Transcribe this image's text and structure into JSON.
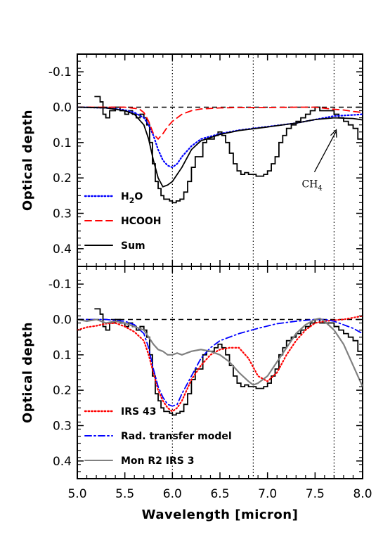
{
  "chart_data": [
    {
      "type": "line",
      "panel": "top",
      "xlabel": "",
      "ylabel": "Optical depth",
      "xlim": [
        5.0,
        8.0
      ],
      "ylim": [
        0.45,
        -0.15
      ],
      "y_inverted": true,
      "yticks": [
        "-0.1",
        "0.0",
        "0.1",
        "0.2",
        "0.3",
        "0.4"
      ],
      "ytick_values": [
        -0.1,
        0.0,
        0.1,
        0.2,
        0.3,
        0.4
      ],
      "reference_lines": {
        "horizontal_dashed_y": 0.0,
        "vertical_dotted_x": [
          6.0,
          6.85,
          7.7
        ]
      },
      "observed_histogram": {
        "x": [
          5.18,
          5.24,
          5.27,
          5.3,
          5.34,
          5.4,
          5.45,
          5.5,
          5.54,
          5.58,
          5.62,
          5.66,
          5.7,
          5.73,
          5.76,
          5.79,
          5.82,
          5.85,
          5.88,
          5.91,
          5.94,
          5.97,
          6.0,
          6.04,
          6.08,
          6.12,
          6.16,
          6.2,
          6.24,
          6.28,
          6.32,
          6.36,
          6.4,
          6.44,
          6.48,
          6.52,
          6.56,
          6.6,
          6.64,
          6.68,
          6.72,
          6.76,
          6.8,
          6.84,
          6.88,
          6.92,
          6.96,
          7.0,
          7.04,
          7.08,
          7.12,
          7.16,
          7.2,
          7.25,
          7.3,
          7.35,
          7.4,
          7.45,
          7.5,
          7.55,
          7.6,
          7.65,
          7.7,
          7.75,
          7.8,
          7.85,
          7.9,
          7.95,
          8.0
        ],
        "y": [
          -0.03,
          -0.015,
          0.02,
          0.03,
          0.01,
          0.0,
          0.01,
          0.02,
          0.01,
          0.02,
          0.03,
          0.02,
          0.03,
          0.05,
          0.1,
          0.16,
          0.21,
          0.23,
          0.25,
          0.26,
          0.26,
          0.265,
          0.27,
          0.265,
          0.26,
          0.24,
          0.21,
          0.17,
          0.14,
          0.14,
          0.1,
          0.09,
          0.09,
          0.08,
          0.07,
          0.08,
          0.1,
          0.13,
          0.16,
          0.18,
          0.19,
          0.185,
          0.19,
          0.19,
          0.195,
          0.195,
          0.19,
          0.18,
          0.16,
          0.14,
          0.1,
          0.08,
          0.06,
          0.05,
          0.04,
          0.03,
          0.02,
          0.01,
          0.0,
          0.01,
          0.01,
          0.01,
          0.02,
          0.03,
          0.04,
          0.05,
          0.06,
          0.09,
          0.11
        ]
      },
      "series": [
        {
          "name": "H2O",
          "style": "dotted",
          "color": "#0000ff",
          "x": [
            5.0,
            5.3,
            5.5,
            5.6,
            5.7,
            5.75,
            5.8,
            5.85,
            5.9,
            5.95,
            6.0,
            6.05,
            6.1,
            6.2,
            6.3,
            6.5,
            6.7,
            7.0,
            7.3,
            7.5,
            7.7,
            7.9,
            8.0
          ],
          "y": [
            0.0,
            0.002,
            0.008,
            0.015,
            0.03,
            0.05,
            0.08,
            0.12,
            0.15,
            0.165,
            0.17,
            0.16,
            0.14,
            0.11,
            0.09,
            0.075,
            0.065,
            0.055,
            0.045,
            0.035,
            0.025,
            0.022,
            0.02
          ]
        },
        {
          "name": "HCOOH",
          "style": "dashed",
          "color": "#ff0000",
          "x": [
            5.0,
            5.5,
            5.65,
            5.7,
            5.75,
            5.8,
            5.85,
            5.9,
            5.95,
            6.0,
            6.05,
            6.1,
            6.2,
            6.3,
            6.5,
            6.7,
            7.0,
            7.3,
            7.5,
            7.6,
            7.7,
            7.8,
            7.9,
            8.0
          ],
          "y": [
            0.0,
            0.0,
            0.005,
            0.015,
            0.04,
            0.075,
            0.09,
            0.075,
            0.055,
            0.04,
            0.03,
            0.02,
            0.01,
            0.005,
            0.002,
            0.001,
            0.001,
            0.0,
            0.0,
            0.003,
            0.006,
            0.008,
            0.012,
            0.015
          ]
        },
        {
          "name": "Sum",
          "style": "solid",
          "color": "#000000",
          "x": [
            5.0,
            5.3,
            5.5,
            5.6,
            5.7,
            5.75,
            5.8,
            5.85,
            5.9,
            5.95,
            6.0,
            6.05,
            6.1,
            6.2,
            6.3,
            6.5,
            6.7,
            7.0,
            7.3,
            7.5,
            7.7,
            7.9,
            8.0
          ],
          "y": [
            0.0,
            0.002,
            0.01,
            0.02,
            0.05,
            0.09,
            0.15,
            0.2,
            0.225,
            0.22,
            0.21,
            0.19,
            0.17,
            0.12,
            0.095,
            0.077,
            0.066,
            0.056,
            0.045,
            0.035,
            0.03,
            0.032,
            0.036
          ]
        }
      ],
      "legend": [
        {
          "label": "H",
          "sub": "2",
          "tail": "O",
          "style": "dotted",
          "color": "#0000ff"
        },
        {
          "label": "HCOOH",
          "sub": "",
          "tail": "",
          "style": "dashed",
          "color": "#ff0000"
        },
        {
          "label": "Sum",
          "sub": "",
          "tail": "",
          "style": "solid",
          "color": "#000000"
        }
      ],
      "legend_position": "bottom-left",
      "annotation": {
        "label": "CH",
        "sub": "4",
        "arrow_to": [
          7.73,
          0.06
        ]
      }
    },
    {
      "type": "line",
      "panel": "bottom",
      "xlabel": "Wavelength [micron]",
      "ylabel": "Optical depth",
      "xlim": [
        5.0,
        8.0
      ],
      "ylim": [
        0.45,
        -0.15
      ],
      "y_inverted": true,
      "xticks": [
        "5.0",
        "5.5",
        "6.0",
        "6.5",
        "7.0",
        "7.5",
        "8.0"
      ],
      "xtick_values": [
        5.0,
        5.5,
        6.0,
        6.5,
        7.0,
        7.5,
        8.0
      ],
      "yticks": [
        "-0.1",
        "0.0",
        "0.1",
        "0.2",
        "0.3",
        "0.4"
      ],
      "ytick_values": [
        -0.1,
        0.0,
        0.1,
        0.2,
        0.3,
        0.4
      ],
      "reference_lines": {
        "horizontal_dashed_y": 0.0,
        "vertical_dotted_x": [
          6.0,
          6.85,
          7.7
        ]
      },
      "observed_histogram": {
        "x": [
          5.18,
          5.24,
          5.27,
          5.3,
          5.34,
          5.4,
          5.45,
          5.5,
          5.54,
          5.58,
          5.62,
          5.66,
          5.7,
          5.73,
          5.76,
          5.79,
          5.82,
          5.85,
          5.88,
          5.91,
          5.94,
          5.97,
          6.0,
          6.04,
          6.08,
          6.12,
          6.16,
          6.2,
          6.24,
          6.28,
          6.32,
          6.36,
          6.4,
          6.44,
          6.48,
          6.52,
          6.56,
          6.6,
          6.64,
          6.68,
          6.72,
          6.76,
          6.8,
          6.84,
          6.88,
          6.92,
          6.96,
          7.0,
          7.04,
          7.08,
          7.12,
          7.16,
          7.2,
          7.25,
          7.3,
          7.35,
          7.4,
          7.45,
          7.5,
          7.55,
          7.6,
          7.65,
          7.7,
          7.75,
          7.8,
          7.85,
          7.9,
          7.95,
          8.0
        ],
        "y": [
          -0.03,
          -0.015,
          0.02,
          0.03,
          0.01,
          0.0,
          0.01,
          0.02,
          0.01,
          0.02,
          0.03,
          0.02,
          0.03,
          0.05,
          0.1,
          0.16,
          0.21,
          0.23,
          0.25,
          0.26,
          0.26,
          0.265,
          0.27,
          0.265,
          0.26,
          0.24,
          0.21,
          0.17,
          0.14,
          0.14,
          0.1,
          0.09,
          0.09,
          0.08,
          0.07,
          0.08,
          0.1,
          0.13,
          0.16,
          0.18,
          0.19,
          0.185,
          0.19,
          0.19,
          0.195,
          0.195,
          0.19,
          0.18,
          0.16,
          0.14,
          0.1,
          0.08,
          0.06,
          0.05,
          0.04,
          0.03,
          0.02,
          0.01,
          0.0,
          0.01,
          0.01,
          0.01,
          0.02,
          0.03,
          0.04,
          0.05,
          0.06,
          0.09,
          0.11
        ]
      },
      "series": [
        {
          "name": "IRS 43",
          "style": "dotted",
          "color": "#ff0000",
          "x": [
            5.0,
            5.1,
            5.2,
            5.3,
            5.4,
            5.5,
            5.6,
            5.7,
            5.75,
            5.8,
            5.85,
            5.9,
            5.95,
            6.0,
            6.05,
            6.1,
            6.15,
            6.2,
            6.3,
            6.4,
            6.5,
            6.6,
            6.7,
            6.8,
            6.9,
            7.0,
            7.1,
            7.2,
            7.3,
            7.4,
            7.5,
            7.6,
            7.7,
            7.8,
            7.9,
            8.0
          ],
          "y": [
            0.03,
            0.022,
            0.018,
            0.012,
            0.01,
            0.02,
            0.035,
            0.06,
            0.1,
            0.15,
            0.2,
            0.23,
            0.25,
            0.26,
            0.25,
            0.23,
            0.2,
            0.17,
            0.13,
            0.1,
            0.085,
            0.08,
            0.08,
            0.11,
            0.16,
            0.175,
            0.15,
            0.1,
            0.06,
            0.03,
            0.01,
            0.005,
            0.002,
            0.0,
            -0.005,
            -0.01
          ]
        },
        {
          "name": "Rad. transfer model",
          "style": "dashdot",
          "color": "#0000ff",
          "x": [
            5.0,
            5.3,
            5.5,
            5.6,
            5.7,
            5.75,
            5.8,
            5.85,
            5.9,
            5.95,
            6.0,
            6.05,
            6.1,
            6.2,
            6.3,
            6.4,
            6.5,
            6.7,
            6.9,
            7.1,
            7.3,
            7.5,
            7.6,
            7.7,
            7.8,
            7.9,
            8.0
          ],
          "y": [
            0.0,
            0.0,
            0.005,
            0.015,
            0.04,
            0.08,
            0.14,
            0.19,
            0.22,
            0.24,
            0.245,
            0.24,
            0.21,
            0.16,
            0.11,
            0.08,
            0.06,
            0.04,
            0.025,
            0.012,
            0.005,
            0.0,
            0.0,
            0.005,
            0.015,
            0.025,
            0.04
          ]
        },
        {
          "name": "Mon R2 IRS 3",
          "style": "solid",
          "color": "#808080",
          "x": [
            5.0,
            5.1,
            5.2,
            5.3,
            5.4,
            5.5,
            5.6,
            5.7,
            5.75,
            5.8,
            5.85,
            5.9,
            5.95,
            6.0,
            6.05,
            6.1,
            6.2,
            6.3,
            6.4,
            6.5,
            6.6,
            6.7,
            6.8,
            6.85,
            6.9,
            7.0,
            7.1,
            7.2,
            7.3,
            7.4,
            7.5,
            7.55,
            7.6,
            7.7,
            7.8,
            7.9,
            8.0
          ],
          "y": [
            0.0,
            0.005,
            0.0,
            0.01,
            0.005,
            0.01,
            0.02,
            0.03,
            0.05,
            0.07,
            0.085,
            0.09,
            0.1,
            0.1,
            0.095,
            0.1,
            0.09,
            0.085,
            0.09,
            0.1,
            0.12,
            0.15,
            0.175,
            0.185,
            0.18,
            0.16,
            0.12,
            0.08,
            0.04,
            0.015,
            0.0,
            -0.003,
            0.005,
            0.03,
            0.07,
            0.13,
            0.19
          ]
        }
      ],
      "legend": [
        {
          "label": "IRS 43",
          "style": "dotted",
          "color": "#ff0000"
        },
        {
          "label": "Rad. transfer model",
          "style": "dashdot",
          "color": "#0000ff"
        },
        {
          "label": "Mon R2 IRS 3",
          "style": "solid",
          "color": "#808080"
        }
      ],
      "legend_position": "bottom-left"
    }
  ]
}
